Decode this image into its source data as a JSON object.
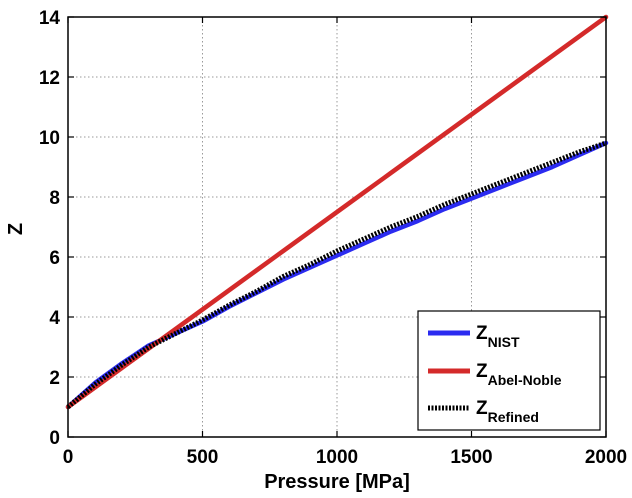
{
  "chart_data": {
    "type": "line",
    "title": "",
    "xlabel": "Pressure [MPa]",
    "ylabel": "Z",
    "xlim": [
      0,
      2000
    ],
    "ylim": [
      0,
      14
    ],
    "xticks": [
      0,
      500,
      1000,
      1500,
      2000
    ],
    "yticks": [
      0,
      2,
      4,
      6,
      8,
      10,
      12,
      14
    ],
    "xtick_labels": [
      "0",
      "500",
      "1000",
      "1500",
      "2000"
    ],
    "ytick_labels": [
      "0",
      "2",
      "4",
      "6",
      "8",
      "10",
      "12",
      "14"
    ],
    "grid": true,
    "legend_position": "bottom-right",
    "x": [
      0,
      100,
      200,
      300,
      400,
      500,
      600,
      700,
      800,
      900,
      1000,
      1100,
      1200,
      1300,
      1400,
      1500,
      1600,
      1700,
      1800,
      1900,
      2000
    ],
    "series": [
      {
        "name": "Z",
        "subscript": "NIST",
        "color": "#2b2bf0",
        "style": "solid",
        "values": [
          1.0,
          1.8,
          2.45,
          3.05,
          3.45,
          3.85,
          4.35,
          4.8,
          5.25,
          5.65,
          6.05,
          6.45,
          6.85,
          7.2,
          7.6,
          7.95,
          8.3,
          8.65,
          9.0,
          9.4,
          9.8
        ]
      },
      {
        "name": "Z",
        "subscript": "Abel-Noble",
        "color": "#d42a2a",
        "style": "solid",
        "values": [
          1.0,
          1.65,
          2.3,
          2.95,
          3.6,
          4.25,
          4.9,
          5.55,
          6.2,
          6.85,
          7.5,
          8.15,
          8.8,
          9.45,
          10.1,
          10.75,
          11.4,
          12.05,
          12.7,
          13.35,
          14.0
        ]
      },
      {
        "name": "Z",
        "subscript": "Refined",
        "color": "#000000",
        "style": "dotted",
        "values": [
          1.0,
          1.75,
          2.4,
          3.0,
          3.45,
          3.9,
          4.4,
          4.85,
          5.35,
          5.75,
          6.2,
          6.6,
          7.0,
          7.35,
          7.75,
          8.1,
          8.45,
          8.8,
          9.15,
          9.5,
          9.8
        ]
      }
    ]
  }
}
